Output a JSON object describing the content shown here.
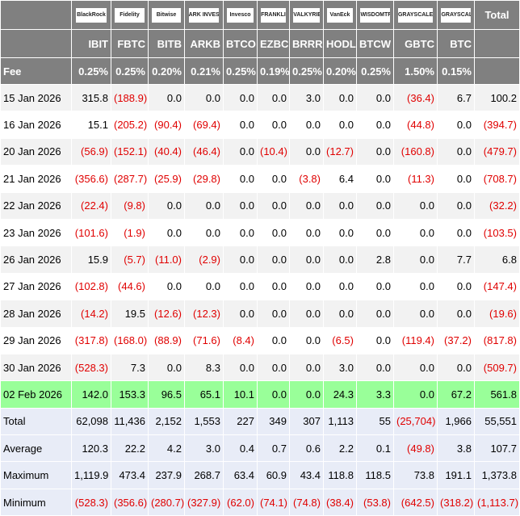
{
  "table": {
    "brands": [
      "BlackRock",
      "Fidelity",
      "Bitwise",
      "ARK INVEST",
      "Invesco",
      "FRANKLIN TEMPLETON",
      "VALKYRIE",
      "VanEck",
      "WISDOMTREE",
      "GRAYSCALE",
      "GRAYSCALE",
      "Total"
    ],
    "tickers": [
      "IBIT",
      "FBTC",
      "BITB",
      "ARKB",
      "BTCO",
      "EZBC",
      "BRRR",
      "HODL",
      "BTCW",
      "GBTC",
      "BTC"
    ],
    "fee_label": "Fee",
    "fees": [
      "0.25%",
      "0.25%",
      "0.20%",
      "0.21%",
      "0.25%",
      "0.19%",
      "0.25%",
      "0.20%",
      "0.25%",
      "1.50%",
      "0.15%"
    ],
    "rows": [
      {
        "label": "15 Jan 2026",
        "cells": [
          "315.8",
          "(188.9)",
          "0.0",
          "0.0",
          "0.0",
          "0.0",
          "3.0",
          "0.0",
          "0.0",
          "(36.4)",
          "6.7",
          "100.2"
        ]
      },
      {
        "label": "16 Jan 2026",
        "cells": [
          "15.1",
          "(205.2)",
          "(90.4)",
          "(69.4)",
          "0.0",
          "0.0",
          "0.0",
          "0.0",
          "0.0",
          "(44.8)",
          "0.0",
          "(394.7)"
        ]
      },
      {
        "label": "20 Jan 2026",
        "cells": [
          "(56.9)",
          "(152.1)",
          "(40.4)",
          "(46.4)",
          "0.0",
          "(10.4)",
          "0.0",
          "(12.7)",
          "0.0",
          "(160.8)",
          "0.0",
          "(479.7)"
        ]
      },
      {
        "label": "21 Jan 2026",
        "cells": [
          "(356.6)",
          "(287.7)",
          "(25.9)",
          "(29.8)",
          "0.0",
          "0.0",
          "(3.8)",
          "6.4",
          "0.0",
          "(11.3)",
          "0.0",
          "(708.7)"
        ]
      },
      {
        "label": "22 Jan 2026",
        "cells": [
          "(22.4)",
          "(9.8)",
          "0.0",
          "0.0",
          "0.0",
          "0.0",
          "0.0",
          "0.0",
          "0.0",
          "0.0",
          "0.0",
          "(32.2)"
        ]
      },
      {
        "label": "23 Jan 2026",
        "cells": [
          "(101.6)",
          "(1.9)",
          "0.0",
          "0.0",
          "0.0",
          "0.0",
          "0.0",
          "0.0",
          "0.0",
          "0.0",
          "0.0",
          "(103.5)"
        ]
      },
      {
        "label": "26 Jan 2026",
        "cells": [
          "15.9",
          "(5.7)",
          "(11.0)",
          "(2.9)",
          "0.0",
          "0.0",
          "0.0",
          "0.0",
          "2.8",
          "0.0",
          "7.7",
          "6.8"
        ]
      },
      {
        "label": "27 Jan 2026",
        "cells": [
          "(102.8)",
          "(44.6)",
          "0.0",
          "0.0",
          "0.0",
          "0.0",
          "0.0",
          "0.0",
          "0.0",
          "0.0",
          "0.0",
          "(147.4)"
        ]
      },
      {
        "label": "28 Jan 2026",
        "cells": [
          "(14.2)",
          "19.5",
          "(12.6)",
          "(12.3)",
          "0.0",
          "0.0",
          "0.0",
          "0.0",
          "0.0",
          "0.0",
          "0.0",
          "(19.6)"
        ]
      },
      {
        "label": "29 Jan 2026",
        "cells": [
          "(317.8)",
          "(168.0)",
          "(88.9)",
          "(71.6)",
          "(8.4)",
          "0.0",
          "0.0",
          "(6.5)",
          "0.0",
          "(119.4)",
          "(37.2)",
          "(817.8)"
        ]
      },
      {
        "label": "30 Jan 2026",
        "cells": [
          "(528.3)",
          "7.3",
          "0.0",
          "8.3",
          "0.0",
          "0.0",
          "0.0",
          "3.0",
          "0.0",
          "0.0",
          "0.0",
          "(509.7)"
        ]
      },
      {
        "label": "02 Feb 2026",
        "cells": [
          "142.0",
          "153.3",
          "96.5",
          "65.1",
          "10.1",
          "0.0",
          "0.0",
          "24.3",
          "3.3",
          "0.0",
          "67.2",
          "561.8"
        ]
      }
    ],
    "summary": [
      {
        "label": "Total",
        "cells": [
          "62,098",
          "11,436",
          "2,152",
          "1,553",
          "227",
          "349",
          "307",
          "1,113",
          "55",
          "(25,704)",
          "1,966",
          "55,551"
        ]
      },
      {
        "label": "Average",
        "cells": [
          "120.3",
          "22.2",
          "4.2",
          "3.0",
          "0.4",
          "0.7",
          "0.6",
          "2.2",
          "0.1",
          "(49.8)",
          "3.8",
          "107.7"
        ]
      },
      {
        "label": "Maximum",
        "cells": [
          "1,119.9",
          "473.4",
          "237.9",
          "268.7",
          "63.4",
          "60.9",
          "43.4",
          "118.8",
          "118.5",
          "73.8",
          "191.1",
          "1,373.8"
        ]
      },
      {
        "label": "Minimum",
        "cells": [
          "(528.3)",
          "(356.6)",
          "(280.7)",
          "(327.9)",
          "(62.0)",
          "(74.1)",
          "(74.8)",
          "(38.4)",
          "(53.8)",
          "(642.5)",
          "(318.2)",
          "(1,113.7)"
        ]
      }
    ]
  }
}
